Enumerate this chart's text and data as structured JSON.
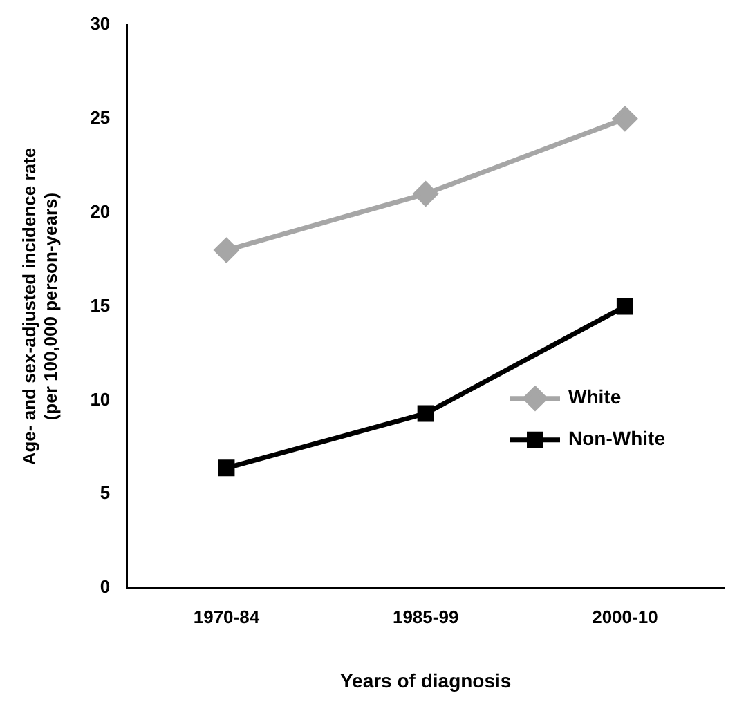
{
  "chart_data": {
    "type": "line",
    "xlabel": "Years of diagnosis",
    "ylabel": "Age- and sex-adjusted incidence rate\n(per 100,000 person-years)",
    "categories": [
      "1970-84",
      "1985-99",
      "2000-10"
    ],
    "series": [
      {
        "name": "White",
        "color": "#a6a6a6",
        "marker": "diamond",
        "values": [
          18,
          21,
          25
        ]
      },
      {
        "name": "Non-White",
        "color": "#000000",
        "marker": "square",
        "values": [
          6.4,
          9.3,
          15
        ]
      }
    ],
    "ylim": [
      0,
      30
    ],
    "yticks": [
      0,
      5,
      10,
      15,
      20,
      25,
      30
    ],
    "grid": false,
    "legend": "right",
    "line_style": "solid"
  }
}
